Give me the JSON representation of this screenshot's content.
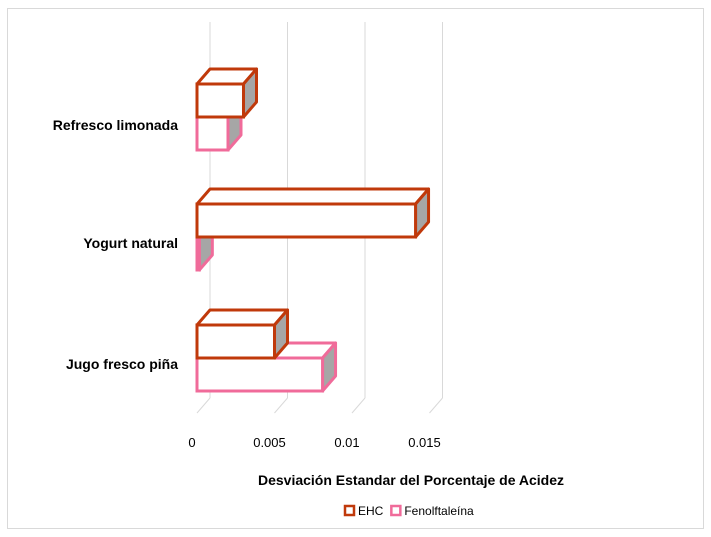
{
  "chart_data": {
    "type": "bar",
    "orientation": "horizontal",
    "three_d": true,
    "categories": [
      "Refresco limonada",
      "Yogurt natural",
      "Jugo fresco piña"
    ],
    "series": [
      {
        "name": "EHC",
        "values": [
          0.003,
          0.0141,
          0.005
        ],
        "color": "#C0390B"
      },
      {
        "name": "Fenolftaleína",
        "values": [
          0.002,
          0.00015,
          0.0081
        ],
        "color": "#F06B9A"
      }
    ],
    "xlabel": "Desviación Estandar del Porcentaje de Acidez",
    "ylabel": "",
    "xlim": [
      0,
      0.015
    ],
    "xticks": [
      "0",
      "0.005",
      "0.01",
      "0.015"
    ],
    "grid": true,
    "legend_position": "bottom"
  }
}
